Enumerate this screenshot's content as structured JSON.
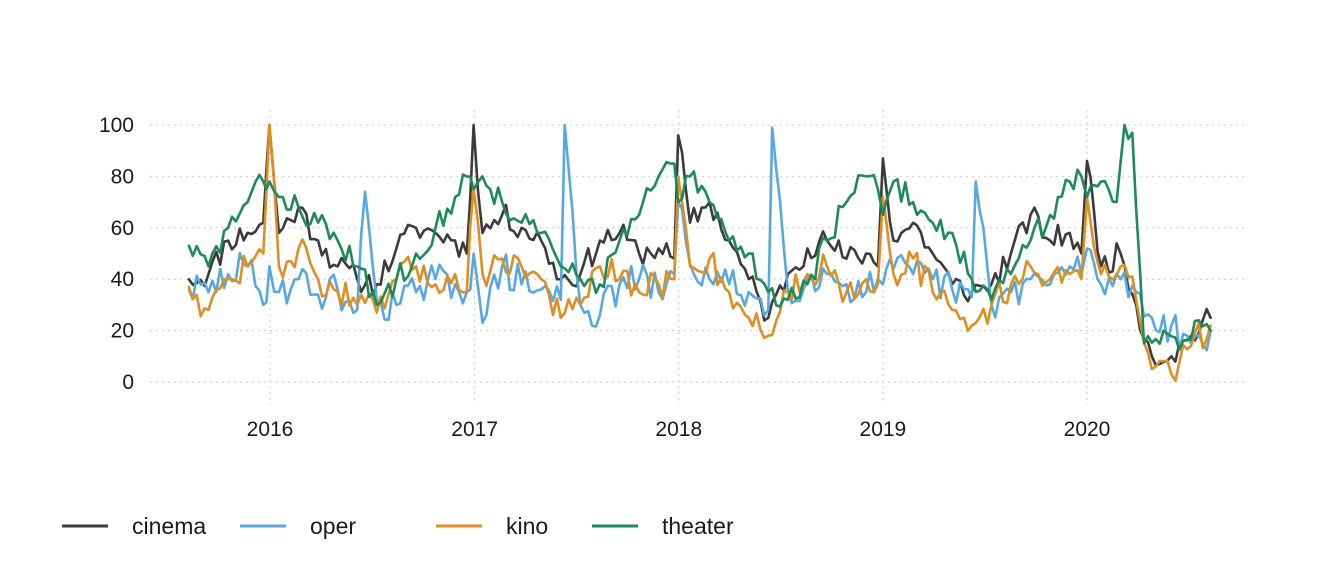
{
  "chart_data": {
    "type": "line",
    "title": "",
    "xlabel": "",
    "ylabel": "",
    "x_range": [
      "2015-08-09",
      "2020-08-09"
    ],
    "ylim": [
      0,
      100
    ],
    "y_ticks": [
      {
        "value": 0,
        "label": "0"
      },
      {
        "value": 20,
        "label": "20"
      },
      {
        "value": 40,
        "label": "40"
      },
      {
        "value": 60,
        "label": "60"
      },
      {
        "value": 80,
        "label": "80"
      },
      {
        "value": 100,
        "label": "100"
      }
    ],
    "x_ticks": [
      {
        "value": "2016-01-01",
        "label": "2016"
      },
      {
        "value": "2017-01-01",
        "label": "2017"
      },
      {
        "value": "2018-01-01",
        "label": "2018"
      },
      {
        "value": "2019-01-01",
        "label": "2019"
      },
      {
        "value": "2020-01-01",
        "label": "2020"
      }
    ],
    "grid": true,
    "legend_position": "bottom-left",
    "series": [
      {
        "name": "cinema",
        "color": "#3b3b3b",
        "points": [
          [
            "2015-08-09",
            40
          ],
          [
            "2015-09-13",
            42
          ],
          [
            "2015-10-18",
            55
          ],
          [
            "2015-11-22",
            58
          ],
          [
            "2015-12-20",
            62
          ],
          [
            "2015-12-31",
            100
          ],
          [
            "2016-01-17",
            58
          ],
          [
            "2016-02-21",
            68
          ],
          [
            "2016-03-27",
            55
          ],
          [
            "2016-05-01",
            45
          ],
          [
            "2016-06-05",
            40
          ],
          [
            "2016-07-10",
            38
          ],
          [
            "2016-08-14",
            52
          ],
          [
            "2016-09-18",
            60
          ],
          [
            "2016-10-23",
            58
          ],
          [
            "2016-11-27",
            55
          ],
          [
            "2016-12-18",
            50
          ],
          [
            "2016-12-30",
            100
          ],
          [
            "2017-01-15",
            58
          ],
          [
            "2017-02-19",
            65
          ],
          [
            "2017-03-26",
            60
          ],
          [
            "2017-04-30",
            55
          ],
          [
            "2017-06-04",
            40
          ],
          [
            "2017-07-09",
            42
          ],
          [
            "2017-08-13",
            55
          ],
          [
            "2017-09-17",
            58
          ],
          [
            "2017-10-22",
            50
          ],
          [
            "2017-11-26",
            52
          ],
          [
            "2017-12-24",
            48
          ],
          [
            "2017-12-31",
            96
          ],
          [
            "2018-01-21",
            62
          ],
          [
            "2018-02-25",
            70
          ],
          [
            "2018-04-01",
            55
          ],
          [
            "2018-05-06",
            40
          ],
          [
            "2018-06-10",
            25
          ],
          [
            "2018-07-15",
            42
          ],
          [
            "2018-08-19",
            52
          ],
          [
            "2018-09-23",
            55
          ],
          [
            "2018-10-28",
            48
          ],
          [
            "2018-12-02",
            50
          ],
          [
            "2018-12-23",
            45
          ],
          [
            "2019-01-01",
            87
          ],
          [
            "2019-01-20",
            55
          ],
          [
            "2019-02-24",
            62
          ],
          [
            "2019-03-31",
            50
          ],
          [
            "2019-05-05",
            38
          ],
          [
            "2019-06-09",
            35
          ],
          [
            "2019-07-14",
            38
          ],
          [
            "2019-08-18",
            50
          ],
          [
            "2019-09-22",
            65
          ],
          [
            "2019-10-27",
            55
          ],
          [
            "2019-12-01",
            58
          ],
          [
            "2019-12-22",
            50
          ],
          [
            "2020-01-01",
            86
          ],
          [
            "2020-01-26",
            45
          ],
          [
            "2020-03-01",
            50
          ],
          [
            "2020-03-29",
            30
          ],
          [
            "2020-04-26",
            10
          ],
          [
            "2020-05-31",
            10
          ],
          [
            "2020-07-05",
            18
          ],
          [
            "2020-08-09",
            25
          ]
        ]
      },
      {
        "name": "oper",
        "color": "#56a8e3",
        "points": [
          [
            "2015-08-09",
            36
          ],
          [
            "2015-09-13",
            35
          ],
          [
            "2015-10-18",
            42
          ],
          [
            "2015-11-22",
            45
          ],
          [
            "2015-12-20",
            30
          ],
          [
            "2015-12-31",
            45
          ],
          [
            "2016-01-17",
            35
          ],
          [
            "2016-02-21",
            40
          ],
          [
            "2016-03-27",
            34
          ],
          [
            "2016-05-01",
            36
          ],
          [
            "2016-06-05",
            28
          ],
          [
            "2016-06-19",
            74
          ],
          [
            "2016-07-10",
            32
          ],
          [
            "2016-08-14",
            30
          ],
          [
            "2016-09-18",
            35
          ],
          [
            "2016-10-23",
            40
          ],
          [
            "2016-11-27",
            38
          ],
          [
            "2016-12-18",
            35
          ],
          [
            "2016-12-30",
            50
          ],
          [
            "2017-01-15",
            23
          ],
          [
            "2017-02-19",
            45
          ],
          [
            "2017-03-26",
            38
          ],
          [
            "2017-04-30",
            36
          ],
          [
            "2017-06-04",
            32
          ],
          [
            "2017-06-11",
            100
          ],
          [
            "2017-07-09",
            30
          ],
          [
            "2017-08-13",
            26
          ],
          [
            "2017-09-17",
            38
          ],
          [
            "2017-10-22",
            40
          ],
          [
            "2017-11-26",
            35
          ],
          [
            "2017-12-24",
            42
          ],
          [
            "2017-12-31",
            70
          ],
          [
            "2018-01-21",
            46
          ],
          [
            "2018-02-25",
            40
          ],
          [
            "2018-04-01",
            38
          ],
          [
            "2018-05-06",
            35
          ],
          [
            "2018-06-10",
            28
          ],
          [
            "2018-06-17",
            99
          ],
          [
            "2018-07-15",
            36
          ],
          [
            "2018-08-19",
            40
          ],
          [
            "2018-09-23",
            42
          ],
          [
            "2018-10-28",
            38
          ],
          [
            "2018-12-02",
            35
          ],
          [
            "2018-12-23",
            40
          ],
          [
            "2019-01-01",
            38
          ],
          [
            "2019-01-20",
            44
          ],
          [
            "2019-02-24",
            42
          ],
          [
            "2019-03-31",
            40
          ],
          [
            "2019-05-05",
            36
          ],
          [
            "2019-06-09",
            33
          ],
          [
            "2019-06-16",
            78
          ],
          [
            "2019-07-14",
            30
          ],
          [
            "2019-08-18",
            35
          ],
          [
            "2019-09-22",
            40
          ],
          [
            "2019-10-27",
            38
          ],
          [
            "2019-12-01",
            45
          ],
          [
            "2019-12-22",
            42
          ],
          [
            "2020-01-01",
            52
          ],
          [
            "2020-01-26",
            38
          ],
          [
            "2020-03-01",
            40
          ],
          [
            "2020-03-29",
            35
          ],
          [
            "2020-04-26",
            25
          ],
          [
            "2020-05-31",
            22
          ],
          [
            "2020-07-05",
            15
          ],
          [
            "2020-08-09",
            20
          ]
        ]
      },
      {
        "name": "kino",
        "color": "#de8f1f",
        "points": [
          [
            "2015-08-09",
            37
          ],
          [
            "2015-09-13",
            28
          ],
          [
            "2015-10-18",
            40
          ],
          [
            "2015-11-22",
            45
          ],
          [
            "2015-12-20",
            50
          ],
          [
            "2015-12-31",
            100
          ],
          [
            "2016-01-17",
            45
          ],
          [
            "2016-02-21",
            52
          ],
          [
            "2016-03-27",
            40
          ],
          [
            "2016-05-01",
            35
          ],
          [
            "2016-06-05",
            30
          ],
          [
            "2016-07-10",
            27
          ],
          [
            "2016-08-14",
            40
          ],
          [
            "2016-09-18",
            45
          ],
          [
            "2016-10-23",
            38
          ],
          [
            "2016-11-27",
            42
          ],
          [
            "2016-12-18",
            35
          ],
          [
            "2016-12-30",
            75
          ],
          [
            "2017-01-15",
            42
          ],
          [
            "2017-02-19",
            48
          ],
          [
            "2017-03-26",
            45
          ],
          [
            "2017-04-30",
            40
          ],
          [
            "2017-06-04",
            25
          ],
          [
            "2017-07-09",
            30
          ],
          [
            "2017-08-13",
            45
          ],
          [
            "2017-09-17",
            40
          ],
          [
            "2017-10-22",
            35
          ],
          [
            "2017-11-26",
            38
          ],
          [
            "2017-12-24",
            40
          ],
          [
            "2017-12-31",
            80
          ],
          [
            "2018-01-21",
            45
          ],
          [
            "2018-02-25",
            48
          ],
          [
            "2018-04-01",
            35
          ],
          [
            "2018-05-06",
            25
          ],
          [
            "2018-06-10",
            18
          ],
          [
            "2018-07-15",
            35
          ],
          [
            "2018-08-19",
            42
          ],
          [
            "2018-09-23",
            45
          ],
          [
            "2018-10-28",
            35
          ],
          [
            "2018-12-02",
            40
          ],
          [
            "2018-12-23",
            38
          ],
          [
            "2019-01-01",
            72
          ],
          [
            "2019-01-20",
            42
          ],
          [
            "2019-02-24",
            48
          ],
          [
            "2019-03-31",
            35
          ],
          [
            "2019-05-05",
            28
          ],
          [
            "2019-06-09",
            22
          ],
          [
            "2019-07-14",
            30
          ],
          [
            "2019-08-18",
            38
          ],
          [
            "2019-09-22",
            45
          ],
          [
            "2019-10-27",
            40
          ],
          [
            "2019-12-01",
            42
          ],
          [
            "2019-12-22",
            40
          ],
          [
            "2020-01-01",
            72
          ],
          [
            "2020-01-26",
            42
          ],
          [
            "2020-03-01",
            45
          ],
          [
            "2020-03-29",
            32
          ],
          [
            "2020-04-26",
            5
          ],
          [
            "2020-05-31",
            3
          ],
          [
            "2020-07-05",
            14
          ],
          [
            "2020-08-09",
            22
          ]
        ]
      },
      {
        "name": "theater",
        "color": "#1d8a5a",
        "points": [
          [
            "2015-08-09",
            53
          ],
          [
            "2015-09-13",
            45
          ],
          [
            "2015-10-18",
            60
          ],
          [
            "2015-11-22",
            70
          ],
          [
            "2015-12-20",
            78
          ],
          [
            "2015-12-31",
            78
          ],
          [
            "2016-01-17",
            72
          ],
          [
            "2016-02-21",
            68
          ],
          [
            "2016-03-27",
            62
          ],
          [
            "2016-05-01",
            55
          ],
          [
            "2016-06-05",
            45
          ],
          [
            "2016-07-10",
            30
          ],
          [
            "2016-08-14",
            40
          ],
          [
            "2016-09-18",
            50
          ],
          [
            "2016-10-23",
            60
          ],
          [
            "2016-11-27",
            72
          ],
          [
            "2016-12-18",
            80
          ],
          [
            "2016-12-30",
            75
          ],
          [
            "2017-01-15",
            80
          ],
          [
            "2017-02-19",
            70
          ],
          [
            "2017-03-26",
            62
          ],
          [
            "2017-04-30",
            58
          ],
          [
            "2017-06-04",
            45
          ],
          [
            "2017-07-09",
            40
          ],
          [
            "2017-08-13",
            38
          ],
          [
            "2017-09-17",
            55
          ],
          [
            "2017-10-22",
            65
          ],
          [
            "2017-11-26",
            80
          ],
          [
            "2017-12-24",
            85
          ],
          [
            "2017-12-31",
            70
          ],
          [
            "2018-01-21",
            80
          ],
          [
            "2018-02-25",
            70
          ],
          [
            "2018-04-01",
            55
          ],
          [
            "2018-05-06",
            50
          ],
          [
            "2018-06-10",
            35
          ],
          [
            "2018-07-15",
            32
          ],
          [
            "2018-08-19",
            38
          ],
          [
            "2018-09-23",
            55
          ],
          [
            "2018-10-28",
            70
          ],
          [
            "2018-12-02",
            80
          ],
          [
            "2018-12-23",
            75
          ],
          [
            "2019-01-01",
            65
          ],
          [
            "2019-01-20",
            78
          ],
          [
            "2019-02-24",
            70
          ],
          [
            "2019-03-31",
            62
          ],
          [
            "2019-05-05",
            58
          ],
          [
            "2019-06-09",
            40
          ],
          [
            "2019-07-14",
            32
          ],
          [
            "2019-08-18",
            42
          ],
          [
            "2019-09-22",
            55
          ],
          [
            "2019-10-27",
            65
          ],
          [
            "2019-12-01",
            78
          ],
          [
            "2019-12-22",
            80
          ],
          [
            "2020-01-01",
            72
          ],
          [
            "2020-01-26",
            78
          ],
          [
            "2020-02-23",
            70
          ],
          [
            "2020-03-08",
            100
          ],
          [
            "2020-03-22",
            97
          ],
          [
            "2020-04-12",
            15
          ],
          [
            "2020-05-17",
            20
          ],
          [
            "2020-06-21",
            16
          ],
          [
            "2020-07-19",
            24
          ],
          [
            "2020-08-09",
            20
          ]
        ]
      }
    ]
  }
}
